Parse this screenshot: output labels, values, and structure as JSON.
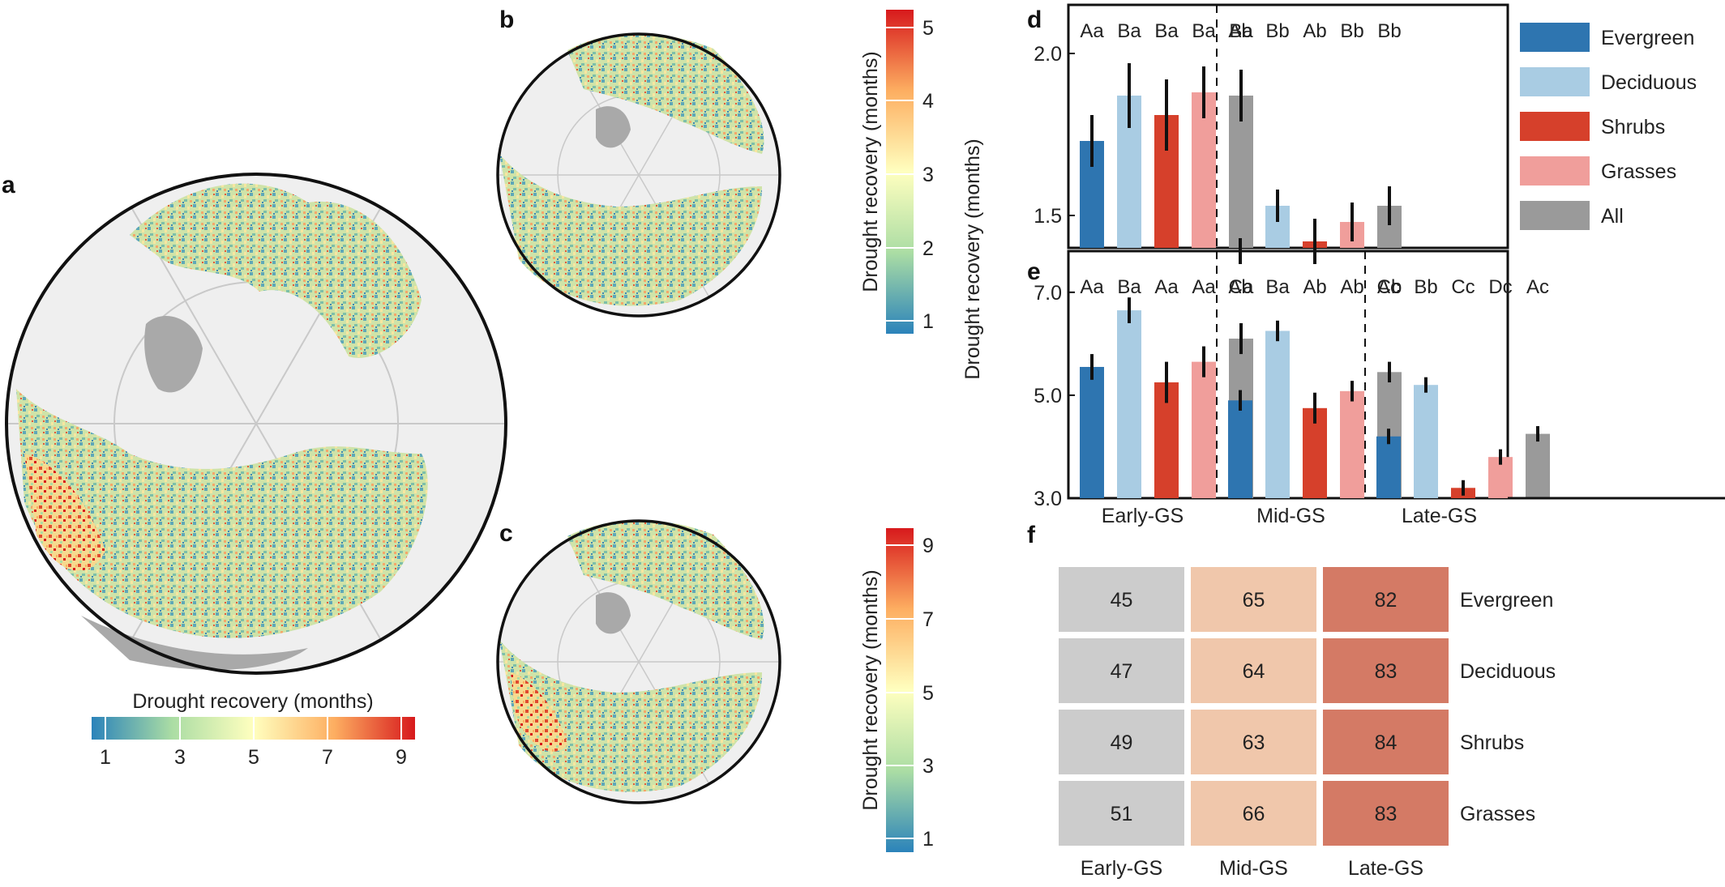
{
  "figure": {
    "panel_letters": [
      "a",
      "b",
      "c",
      "d",
      "e",
      "f"
    ],
    "map_a": {
      "colorbar_title": "Drought recovery (months)",
      "ticks": [
        "1",
        "3",
        "5",
        "7",
        "9"
      ]
    },
    "map_b": {
      "colorbar_title": "Drought recovery (months)",
      "ticks": [
        "1",
        "2",
        "3",
        "4",
        "5"
      ]
    },
    "map_c": {
      "colorbar_title": "Drought recovery (months)",
      "ticks": [
        "1",
        "3",
        "5",
        "7",
        "9"
      ]
    },
    "shared_ylabel": "Drought recovery (months)"
  },
  "colors": {
    "Evergreen": "#2e75b0",
    "Deciduous": "#a9cce3",
    "Shrubs": "#d6402b",
    "Grasses": "#f09e9b",
    "All": "#9a9a9a",
    "land": "#a9a9a9",
    "ocean": "#efefef",
    "early_cell": "#cccccc",
    "mid_cell": "#f0c7ab",
    "late_cell": "#d47a65",
    "colormap": [
      "#2b83ba",
      "#abdda4",
      "#ffffbf",
      "#fdae61",
      "#d7191c"
    ]
  },
  "chart_data": [
    {
      "panel": "d",
      "type": "bar",
      "groups": [
        "Early-GS",
        "Mid-GS"
      ],
      "series_order": [
        "Evergreen",
        "Deciduous",
        "Shrubs",
        "Grasses",
        "All"
      ],
      "yticks": [
        "1.5",
        "2.0"
      ],
      "ylim": [
        1.4,
        2.15
      ],
      "series": [
        {
          "name": "Evergreen",
          "values": [
            1.73,
            1.39
          ],
          "err": [
            0.08,
            0.04
          ],
          "letters": [
            "Aa",
            "Ab"
          ]
        },
        {
          "name": "Deciduous",
          "values": [
            1.87,
            1.53
          ],
          "err": [
            0.1,
            0.05
          ],
          "letters": [
            "Ba",
            "Bb"
          ]
        },
        {
          "name": "Shrubs",
          "values": [
            1.81,
            1.42
          ],
          "err": [
            0.11,
            0.07
          ],
          "letters": [
            "Ba",
            "Ab"
          ]
        },
        {
          "name": "Grasses",
          "values": [
            1.88,
            1.48
          ],
          "err": [
            0.08,
            0.06
          ],
          "letters": [
            "Ba",
            "Bb"
          ]
        },
        {
          "name": "All",
          "values": [
            1.87,
            1.53
          ],
          "err": [
            0.08,
            0.06
          ],
          "letters": [
            "Ba",
            "Bb"
          ]
        }
      ],
      "legend": [
        "Evergreen",
        "Deciduous",
        "Shrubs",
        "Grasses",
        "All"
      ]
    },
    {
      "panel": "e",
      "type": "bar",
      "groups": [
        "Early-GS",
        "Mid-GS",
        "Late-GS"
      ],
      "series_order": [
        "Evergreen",
        "Deciduous",
        "Shrubs",
        "Grasses",
        "All"
      ],
      "yticks": [
        "3.0",
        "5.0",
        "7.0"
      ],
      "ylim": [
        3.0,
        7.8
      ],
      "series": [
        {
          "name": "Evergreen",
          "values": [
            5.55,
            4.9,
            4.2
          ],
          "err": [
            0.25,
            0.2,
            0.15
          ],
          "letters": [
            "Aa",
            "Ab",
            "Ac"
          ]
        },
        {
          "name": "Deciduous",
          "values": [
            6.65,
            6.25,
            5.2
          ],
          "err": [
            0.25,
            0.2,
            0.15
          ],
          "letters": [
            "Ba",
            "Ba",
            "Bb"
          ]
        },
        {
          "name": "Shrubs",
          "values": [
            5.25,
            4.75,
            3.2
          ],
          "err": [
            0.4,
            0.3,
            0.15
          ],
          "letters": [
            "Aa",
            "Ab",
            "Cc"
          ]
        },
        {
          "name": "Grasses",
          "values": [
            5.65,
            5.08,
            3.8
          ],
          "err": [
            0.3,
            0.2,
            0.15
          ],
          "letters": [
            "Aa",
            "Ab",
            "Dc"
          ]
        },
        {
          "name": "All",
          "values": [
            6.1,
            5.45,
            4.25
          ],
          "err": [
            0.3,
            0.2,
            0.15
          ],
          "letters": [
            "Ca",
            "Cb",
            "Ac"
          ]
        }
      ]
    },
    {
      "panel": "f",
      "type": "heatmap",
      "columns": [
        "Early-GS",
        "Mid-GS",
        "Late-GS"
      ],
      "rows": [
        "Evergreen",
        "Deciduous",
        "Shrubs",
        "Grasses"
      ],
      "values": [
        [
          45,
          65,
          82
        ],
        [
          47,
          64,
          83
        ],
        [
          49,
          63,
          84
        ],
        [
          51,
          66,
          83
        ]
      ]
    }
  ]
}
